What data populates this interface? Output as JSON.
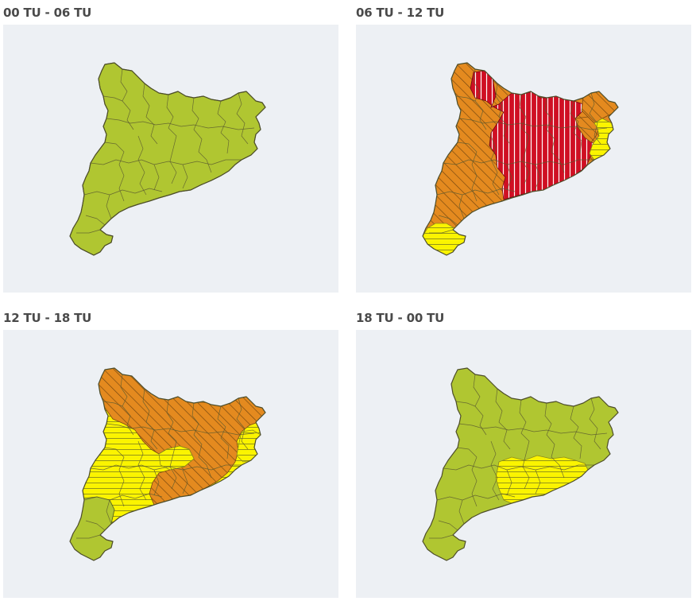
{
  "colors": {
    "background": "#edf0f4",
    "green": "#b0c631",
    "yellow": "#fbf400",
    "orange": "#e48a1f",
    "red": "#cf0f23",
    "hatch_yellow": "#8a8a1a",
    "hatch_orange": "#7a4a10",
    "hatch_red": "#ffffff"
  },
  "panels": [
    {
      "title": "00 TU - 06 TU",
      "warning_levels": [
        "green"
      ]
    },
    {
      "title": "06 TU - 12 TU",
      "warning_levels": [
        "orange",
        "red",
        "yellow"
      ]
    },
    {
      "title": "12 TU - 18 TU",
      "warning_levels": [
        "orange",
        "yellow",
        "green"
      ]
    },
    {
      "title": "18 TU - 00 TU",
      "warning_levels": [
        "green",
        "yellow"
      ]
    }
  ]
}
